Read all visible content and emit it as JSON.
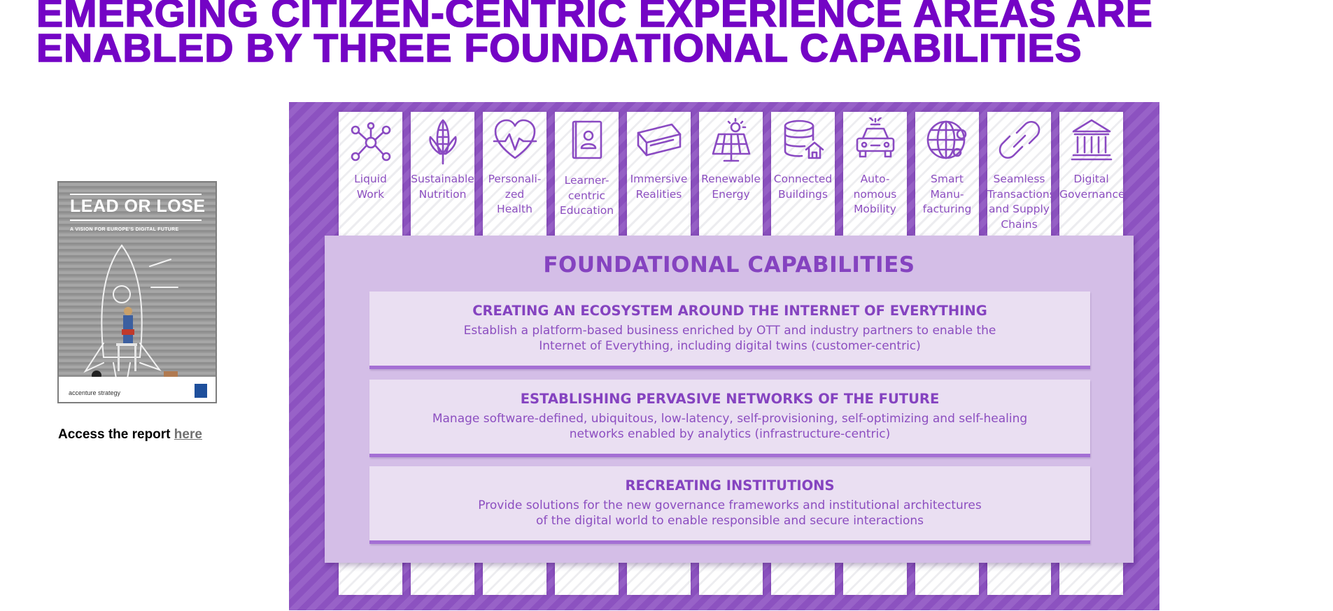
{
  "page": {
    "title": "EMERGING CITIZEN-CENTRIC EXPERIENCE AREAS ARE\nENABLED BY THREE FOUNDATIONAL CAPABILITIES"
  },
  "report": {
    "cover_headline": "LEAD OR LOSE",
    "cover_subtitle": "A VISION FOR EUROPE'S DIGITAL FUTURE",
    "cover_brand": "accenture strategy",
    "access_prefix": "Access the report ",
    "access_link": "here"
  },
  "areas": [
    {
      "label": "Liquid\nWork",
      "icon": "network-nodes-icon"
    },
    {
      "label": "Sustainable\nNutrition",
      "icon": "corn-icon"
    },
    {
      "label": "Personali-\nzed\nHealth",
      "icon": "heart-pulse-icon"
    },
    {
      "label": "Learner-\ncentric\nEducation",
      "icon": "book-person-icon"
    },
    {
      "label": "Immersive\nRealities",
      "icon": "vr-headset-icon"
    },
    {
      "label": "Renewable\nEnergy",
      "icon": "solar-panel-icon"
    },
    {
      "label": "Connected\nBuildings",
      "icon": "database-house-icon"
    },
    {
      "label": "Auto-\nnomous\nMobility",
      "icon": "car-icon"
    },
    {
      "label": "Smart\nManu-\nfacturing",
      "icon": "globe-network-icon"
    },
    {
      "label": "Seamless\nTransactions\nand Supply\nChains",
      "icon": "chain-link-icon"
    },
    {
      "label": "Digital\nGovernance",
      "icon": "government-building-icon"
    }
  ],
  "foundation": {
    "title": "FOUNDATIONAL CAPABILITIES",
    "capabilities": [
      {
        "title": "CREATING AN ECOSYSTEM AROUND THE INTERNET OF EVERYTHING",
        "description": "Establish a platform-based business enriched by OTT and industry partners to enable the\nInternet of Everything, including digital twins (customer-centric)"
      },
      {
        "title": "ESTABLISHING PERVASIVE NETWORKS OF THE FUTURE",
        "description": "Manage software-defined, ubiquitous, low-latency, self-provisioning, self-optimizing and self-healing\nnetworks enabled by analytics (infrastructure-centric)"
      },
      {
        "title": "RECREATING INSTITUTIONS",
        "description": "Provide solutions for the new governance frameworks and institutional architectures\nof the digital world to enable responsible and secure interactions"
      }
    ]
  },
  "colors": {
    "title": "#7404C5",
    "panel": "#9157C4",
    "foundation": "#D4BEE7",
    "capability": "#EADFF2",
    "text": "#8543C0"
  }
}
